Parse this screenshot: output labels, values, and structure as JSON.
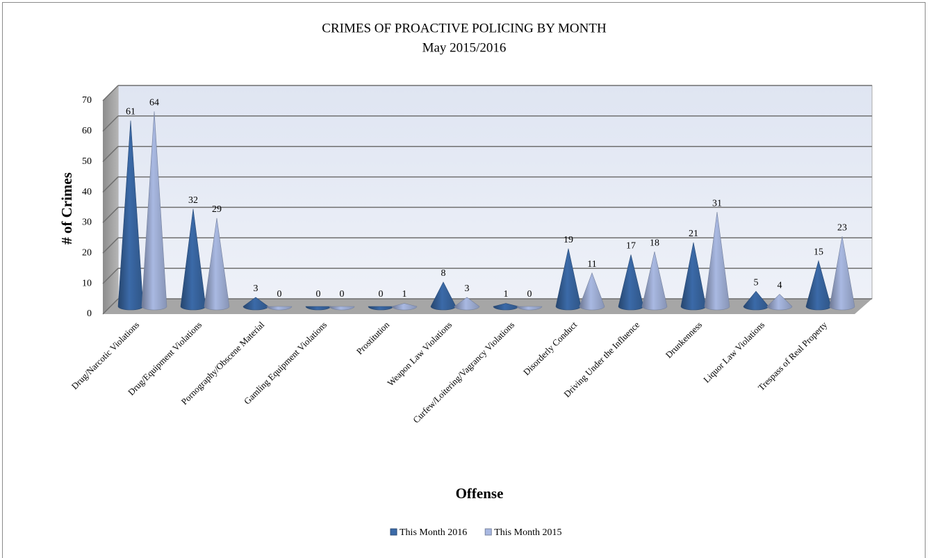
{
  "chart_data": {
    "type": "bar3d-cone",
    "title": "CRIMES OF PROACTIVE POLICING BY MONTH",
    "subtitle": "May 2015/2016",
    "x_label": "Offense",
    "y_label": "# of Crimes",
    "categories": [
      "Drug/Narcotic Violations",
      "Drug/Equipment Violations",
      "Pornography/Obscene Material",
      "Gamling Equipment Violations",
      "Prostitution",
      "Weapon Law Violations",
      "Curfew/Loitering/Vagrancy Violations",
      "Disorderly Conduct",
      "Driving Under the Influence",
      "Drunkenness",
      "Liquor Law Violations",
      "Trespass of Real Property"
    ],
    "series": [
      {
        "name": "This Month 2016",
        "color": "#3b6aa8",
        "values": [
          61,
          32,
          3,
          0,
          0,
          8,
          1,
          19,
          17,
          21,
          5,
          15
        ]
      },
      {
        "name": "This Month 2015",
        "color": "#a9b9e2",
        "values": [
          64,
          29,
          0,
          0,
          1,
          3,
          0,
          11,
          18,
          31,
          4,
          23
        ]
      }
    ],
    "ylim": [
      0,
      70
    ],
    "yticks": [
      0,
      10,
      20,
      30,
      40,
      50,
      60,
      70
    ],
    "grid": true,
    "legend": "bottom"
  }
}
